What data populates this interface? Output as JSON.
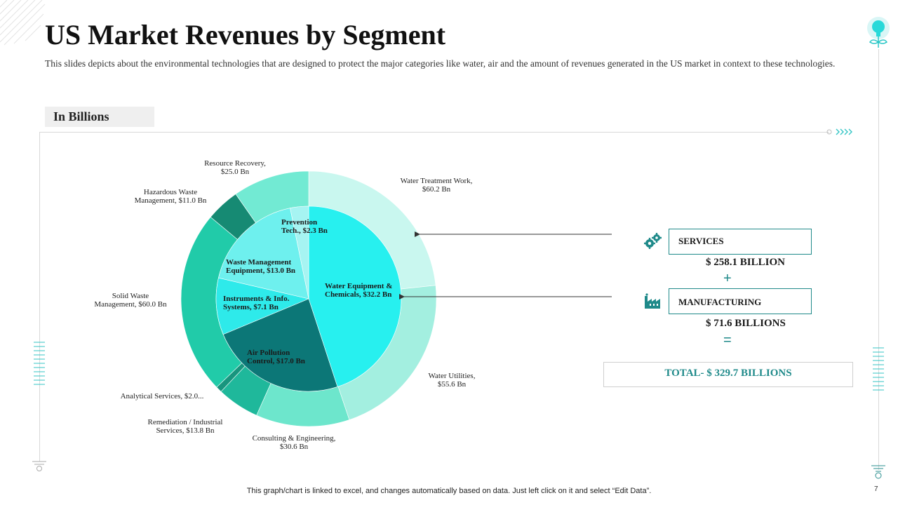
{
  "slide": {
    "title": "US Market Revenues by Segment",
    "subtitle": "This slides depicts about the environmental technologies that are designed to protect the major categories like water, air and the amount of revenues generated in the US market in context to these technologies.",
    "unit_label": "In Billions",
    "footer_note": "This graph/chart is linked to excel,  and changes automatically based on data. Just left click on it and select “Edit Data”.",
    "page_number": "7"
  },
  "summary": {
    "services_label": "SERVICES",
    "services_amount": "$ 258.1 BILLION",
    "plus_sign": "+",
    "manufacturing_label": "MANUFACTURING",
    "manufacturing_amount": "$ 71.6 BILLIONS",
    "equals_sign": "=",
    "total_text": "TOTAL- $ 329.7 BILLIONS",
    "services_icon": "gears-icon",
    "manufacturing_icon": "factory-icon"
  },
  "chart_data": {
    "type": "pie",
    "layout": "sunburst",
    "start_angle": "top, clockwise",
    "outer_ring": [
      {
        "label_line1": "Water Treatment Work,",
        "label_line2": "$60.2 Bn",
        "value": 60.2,
        "color": "#c9f7ef"
      },
      {
        "label_line1": "Water Utilities,",
        "label_line2": "$55.6 Bn",
        "value": 55.6,
        "color": "#a3efe0"
      },
      {
        "label_line1": "Consulting & Engineering,",
        "label_line2": "$30.6 Bn",
        "value": 30.6,
        "color": "#6de6cc"
      },
      {
        "label_line1": "Remediation / Industrial",
        "label_line2": "Services, $13.8 Bn",
        "value": 13.8,
        "color": "#1fb89b"
      },
      {
        "label_line1": "Analytical Services, $2.0...",
        "label_line2": "",
        "value": 2.0,
        "color": "#18957e"
      },
      {
        "label_line1": "Solid Waste",
        "label_line2": "Management, $60.0 Bn",
        "value": 60.0,
        "color": "#21cba9"
      },
      {
        "label_line1": "Hazardous Waste",
        "label_line2": "Management, $11.0 Bn",
        "value": 11.0,
        "color": "#168a73"
      },
      {
        "label_line1": "Resource Recovery,",
        "label_line2": "$25.0 Bn",
        "value": 25.0,
        "color": "#72ead3"
      }
    ],
    "inner_pie": [
      {
        "label_line1": "Water Equipment &",
        "label_line2": "Chemicals, $32.2 Bn",
        "value": 32.2,
        "color": "#27f0ef"
      },
      {
        "label_line1": "Air Pollution",
        "label_line2": "Control, $17.0 Bn",
        "value": 17.0,
        "color": "#0c7777"
      },
      {
        "label_line1": "Instruments & Info.",
        "label_line2": "Systems, $7.1 Bn",
        "value": 7.1,
        "color": "#2eeaea"
      },
      {
        "label_line1": "Waste Management",
        "label_line2": "Equipment, $13.0 Bn",
        "value": 13.0,
        "color": "#6ef0ee"
      },
      {
        "label_line1": "Prevention",
        "label_line2": "Tech., $2.3 Bn",
        "value": 2.3,
        "color": "#a6f4f2"
      }
    ]
  }
}
